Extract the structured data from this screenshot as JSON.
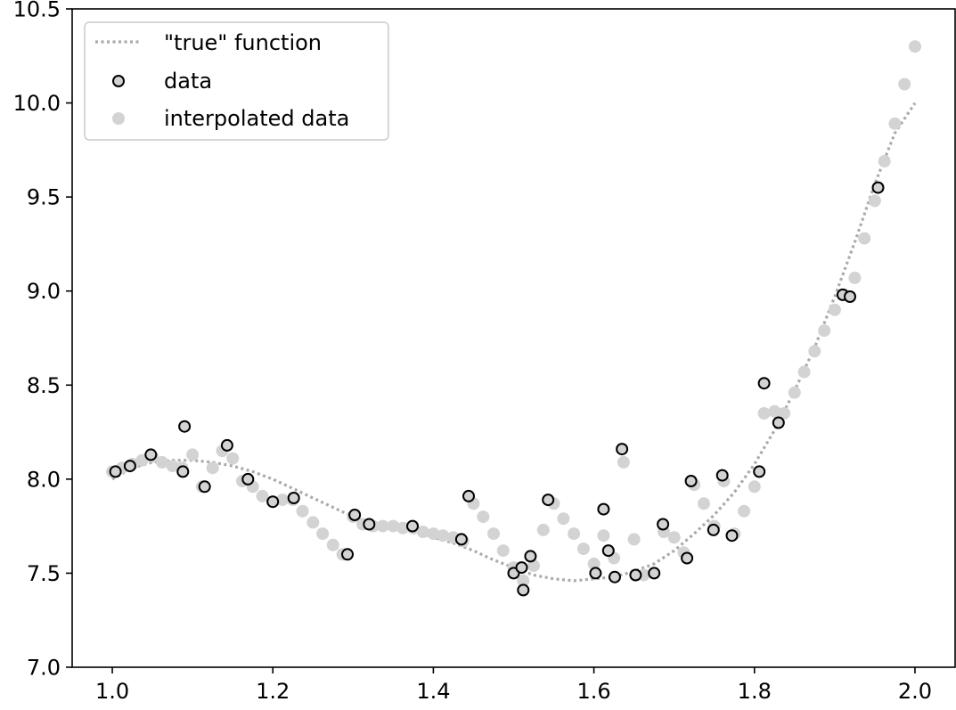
{
  "chart_data": {
    "type": "scatter",
    "title": "",
    "xlabel": "",
    "ylabel": "",
    "xlim": [
      0.95,
      2.05
    ],
    "ylim": [
      7.0,
      10.5
    ],
    "xticks": [
      1.0,
      1.2,
      1.4,
      1.6,
      1.8,
      2.0
    ],
    "xtick_labels": [
      "1.0",
      "1.2",
      "1.4",
      "1.6",
      "1.8",
      "2.0"
    ],
    "yticks": [
      7.0,
      7.5,
      8.0,
      8.5,
      9.0,
      9.5,
      10.0,
      10.5
    ],
    "ytick_labels": [
      "7.0",
      "7.5",
      "8.0",
      "8.5",
      "9.0",
      "9.5",
      "10.0",
      "10.5"
    ],
    "grid": false,
    "legend": {
      "position": "top-left",
      "entries": [
        "\"true\" function",
        "data",
        "interpolated data"
      ]
    },
    "series": [
      {
        "name": "\"true\" function",
        "kind": "line",
        "style": "dotted",
        "color": "#aaaaaa",
        "x": [
          1.0,
          1.025,
          1.05,
          1.075,
          1.1,
          1.125,
          1.15,
          1.175,
          1.2,
          1.225,
          1.25,
          1.275,
          1.3,
          1.325,
          1.35,
          1.375,
          1.4,
          1.425,
          1.45,
          1.475,
          1.5,
          1.525,
          1.55,
          1.575,
          1.6,
          1.625,
          1.65,
          1.675,
          1.7,
          1.725,
          1.75,
          1.775,
          1.8,
          1.825,
          1.85,
          1.875,
          1.9,
          1.925,
          1.95,
          1.975,
          2.0
        ],
        "y": [
          8.0,
          8.06,
          8.09,
          8.1,
          8.1,
          8.09,
          8.07,
          8.04,
          8.0,
          7.95,
          7.9,
          7.85,
          7.8,
          7.76,
          7.74,
          7.72,
          7.69,
          7.66,
          7.62,
          7.57,
          7.53,
          7.49,
          7.47,
          7.46,
          7.47,
          7.48,
          7.51,
          7.55,
          7.62,
          7.71,
          7.81,
          7.93,
          8.08,
          8.26,
          8.47,
          8.7,
          8.97,
          9.26,
          9.57,
          9.84,
          10.0
        ]
      },
      {
        "name": "interpolated data",
        "kind": "scatter",
        "color": "#d3d3d3",
        "x": [
          1.0,
          1.012,
          1.025,
          1.037,
          1.05,
          1.062,
          1.075,
          1.087,
          1.1,
          1.112,
          1.125,
          1.137,
          1.15,
          1.162,
          1.175,
          1.187,
          1.2,
          1.212,
          1.225,
          1.237,
          1.25,
          1.262,
          1.275,
          1.287,
          1.3,
          1.312,
          1.325,
          1.337,
          1.35,
          1.362,
          1.375,
          1.387,
          1.4,
          1.412,
          1.425,
          1.437,
          1.45,
          1.462,
          1.475,
          1.487,
          1.5,
          1.512,
          1.525,
          1.537,
          1.55,
          1.562,
          1.575,
          1.587,
          1.6,
          1.612,
          1.625,
          1.637,
          1.65,
          1.662,
          1.675,
          1.687,
          1.7,
          1.712,
          1.725,
          1.737,
          1.75,
          1.762,
          1.775,
          1.787,
          1.8,
          1.812,
          1.825,
          1.837,
          1.85,
          1.862,
          1.875,
          1.887,
          1.9,
          1.912,
          1.925,
          1.937,
          1.95,
          1.962,
          1.975,
          1.987,
          2.0
        ],
        "y": [
          8.04,
          8.06,
          8.08,
          8.1,
          8.12,
          8.09,
          8.07,
          8.06,
          8.13,
          7.96,
          8.06,
          8.15,
          8.11,
          7.99,
          7.96,
          7.91,
          7.88,
          7.89,
          7.89,
          7.83,
          7.77,
          7.71,
          7.65,
          7.6,
          7.8,
          7.76,
          7.75,
          7.75,
          7.75,
          7.74,
          7.74,
          7.72,
          7.71,
          7.7,
          7.69,
          7.67,
          7.87,
          7.8,
          7.71,
          7.62,
          7.53,
          7.46,
          7.54,
          7.73,
          7.87,
          7.79,
          7.71,
          7.63,
          7.55,
          7.7,
          7.58,
          8.09,
          7.68,
          7.49,
          7.5,
          7.72,
          7.69,
          7.61,
          7.97,
          7.87,
          7.75,
          7.99,
          7.71,
          7.83,
          7.96,
          8.35,
          8.36,
          8.35,
          8.46,
          8.57,
          8.68,
          8.79,
          8.9,
          8.98,
          9.07,
          9.28,
          9.48,
          9.69,
          9.89,
          10.1,
          10.3
        ]
      },
      {
        "name": "data",
        "kind": "scatter",
        "color": "#d3d3d3",
        "edge_color": "#000000",
        "x": [
          1.004,
          1.022,
          1.048,
          1.088,
          1.09,
          1.115,
          1.143,
          1.169,
          1.2,
          1.226,
          1.293,
          1.302,
          1.32,
          1.374,
          1.435,
          1.444,
          1.5,
          1.51,
          1.512,
          1.521,
          1.543,
          1.602,
          1.612,
          1.618,
          1.626,
          1.635,
          1.652,
          1.675,
          1.686,
          1.716,
          1.721,
          1.749,
          1.76,
          1.772,
          1.806,
          1.812,
          1.83,
          1.91,
          1.919,
          1.954
        ],
        "y": [
          8.04,
          8.07,
          8.13,
          8.04,
          8.28,
          7.96,
          8.18,
          8.0,
          7.88,
          7.9,
          7.6,
          7.81,
          7.76,
          7.75,
          7.68,
          7.91,
          7.5,
          7.53,
          7.41,
          7.59,
          7.89,
          7.5,
          7.84,
          7.62,
          7.48,
          8.16,
          7.49,
          7.5,
          7.76,
          7.58,
          7.99,
          7.73,
          8.02,
          7.7,
          8.04,
          8.51,
          8.3,
          8.98,
          8.97,
          9.55
        ]
      }
    ]
  }
}
